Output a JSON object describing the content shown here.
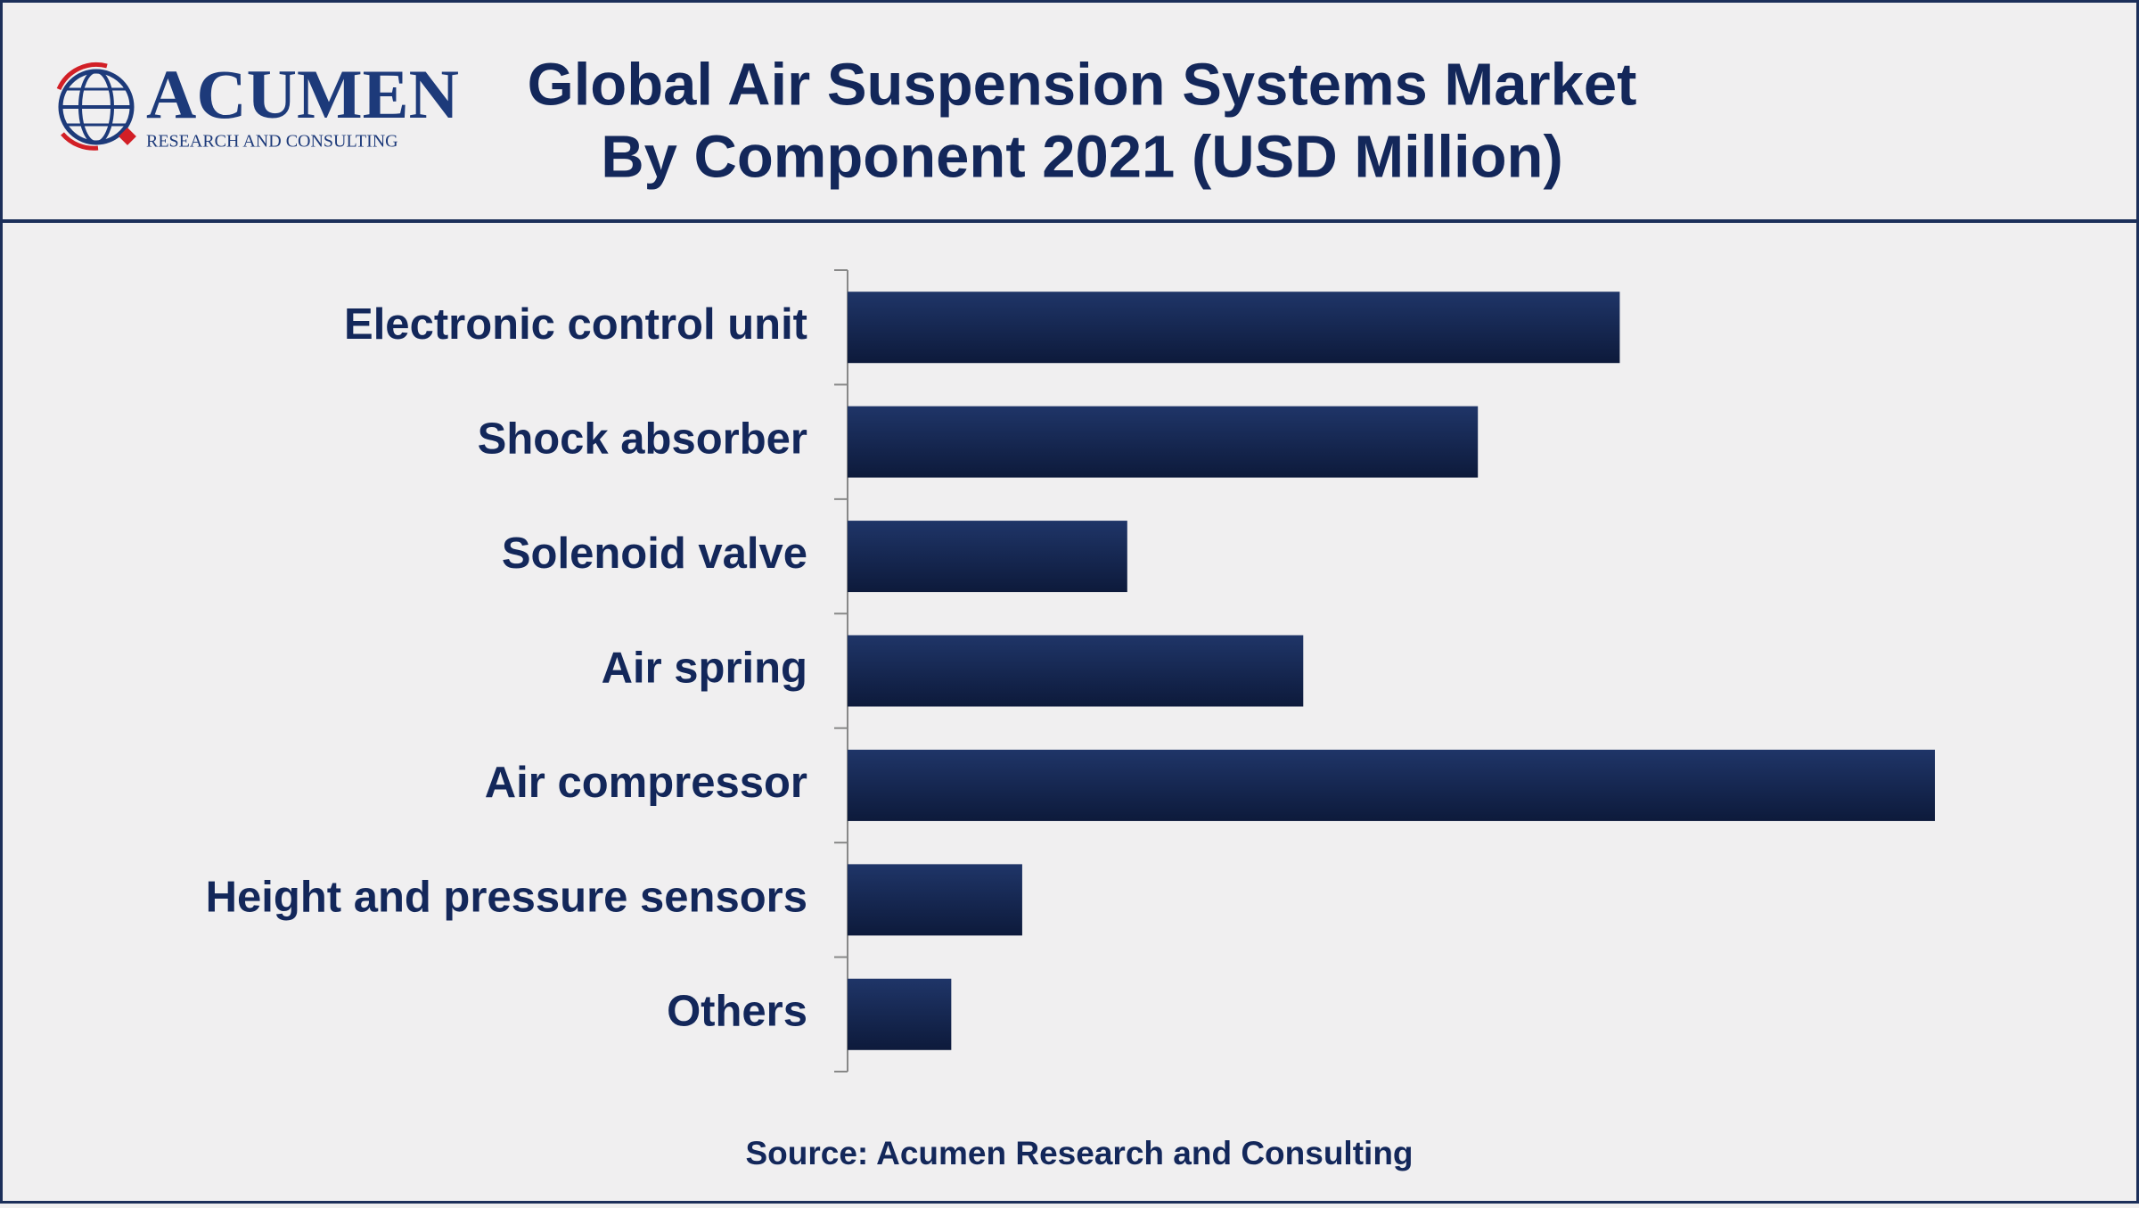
{
  "logo": {
    "name": "ACUMEN",
    "tagline": "RESEARCH AND CONSULTING"
  },
  "chart_data": {
    "type": "barh",
    "title": "Global Air Suspension Systems Market",
    "subtitle": "By Component 2021 (USD Million)",
    "categories": [
      "Electronic control unit",
      "Shock absorber",
      "Solenoid valve",
      "Air spring",
      "Air compressor",
      "Height and pressure sensors",
      "Others"
    ],
    "values": [
      566,
      462,
      205,
      334,
      797,
      128,
      76
    ],
    "color": "#1f3568",
    "source": "Source: Acumen Research and Consulting"
  }
}
